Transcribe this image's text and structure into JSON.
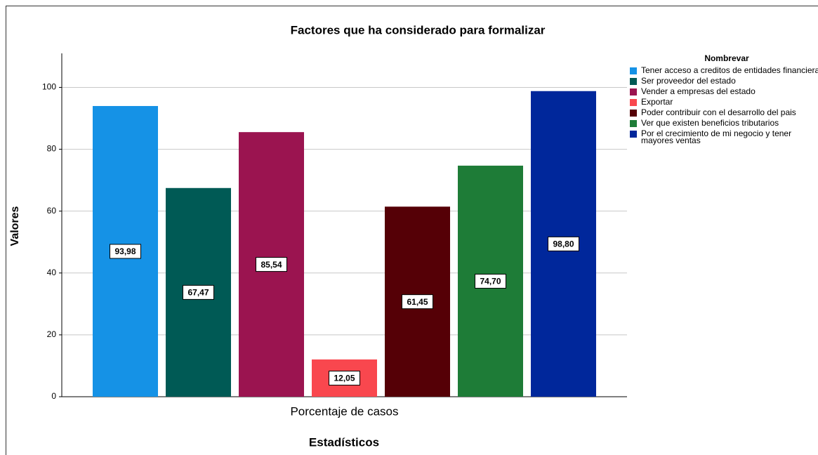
{
  "chart_data": {
    "type": "bar",
    "title": "Factores que ha considerado para formalizar",
    "x_label": "Estadísticos",
    "y_label": "Valores",
    "legend_title": "Nombrevar",
    "categories": [
      "Porcentaje de casos"
    ],
    "series": [
      {
        "name": "Tener acceso a creditos de entidades financieras",
        "color": "#1592e6",
        "values": [
          93.98
        ],
        "value_labels": [
          "93,98"
        ]
      },
      {
        "name": "Ser proveedor del estado",
        "color": "#005a55",
        "values": [
          67.47
        ],
        "value_labels": [
          "67,47"
        ]
      },
      {
        "name": "Vender a empresas del estado",
        "color": "#9b1450",
        "values": [
          85.54
        ],
        "value_labels": [
          "85,54"
        ]
      },
      {
        "name": "Exportar",
        "color": "#f9474e",
        "values": [
          12.05
        ],
        "value_labels": [
          "12,05"
        ]
      },
      {
        "name": "Poder contribuir con el desarrollo del pais",
        "color": "#550006",
        "values": [
          61.45
        ],
        "value_labels": [
          "61,45"
        ]
      },
      {
        "name": "Ver que existen beneficios tributarios",
        "color": "#1e7c37",
        "values": [
          74.7
        ],
        "value_labels": [
          "74,70"
        ]
      },
      {
        "name": "Por el crecimiento de mi negocio y tener mayores ventas",
        "color": "#00279b",
        "values": [
          98.8
        ],
        "value_labels": [
          "98,80"
        ]
      }
    ],
    "ylim": [
      0,
      111
    ],
    "yticks": [
      0,
      20,
      40,
      60,
      80,
      100
    ],
    "grid": true,
    "legend": "right"
  }
}
